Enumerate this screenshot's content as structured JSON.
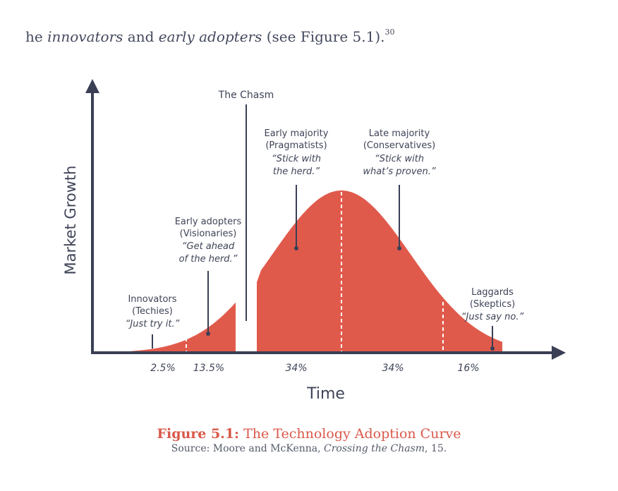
{
  "intro": {
    "prefix": "he ",
    "term1": "innovators",
    "mid": " and ",
    "term2": "early adopters",
    "suffix": " (see Figure 5.1).",
    "footnote": "30"
  },
  "chart_data": {
    "type": "area",
    "title": "",
    "xlabel": "Time",
    "ylabel": "Market Growth",
    "chasm_label": "The Chasm",
    "segments": [
      {
        "name": "Innovators",
        "group": "(Techies)",
        "quote": "“Just try it.”",
        "percent": "2.5%",
        "share": 2.5
      },
      {
        "name": "Early adopters",
        "group": "(Visionaries)",
        "quote1": "“Get ahead",
        "quote2": "of the herd.”",
        "percent": "13.5%",
        "share": 13.5
      },
      {
        "name": "Early majority",
        "group": "(Pragmatists)",
        "quote1": "“Stick with",
        "quote2": "the herd.”",
        "percent": "34%",
        "share": 34
      },
      {
        "name": "Late majority",
        "group": "(Conservatives)",
        "quote1": "“Stick with",
        "quote2": "what’s proven.”",
        "percent": "34%",
        "share": 34
      },
      {
        "name": "Laggards",
        "group": "(Skeptics)",
        "quote": "“Just say no.”",
        "percent": "16%",
        "share": 16
      }
    ],
    "colors": {
      "fill": "#e05a4c",
      "axis": "#3a3f55",
      "divider": "#ffffff"
    }
  },
  "caption": {
    "figure": "Figure 5.1:",
    "title": " The Technology Adoption Curve",
    "source_prefix": "Source: Moore and McKenna, ",
    "source_book": "Crossing the Chasm",
    "source_suffix": ", 15."
  }
}
